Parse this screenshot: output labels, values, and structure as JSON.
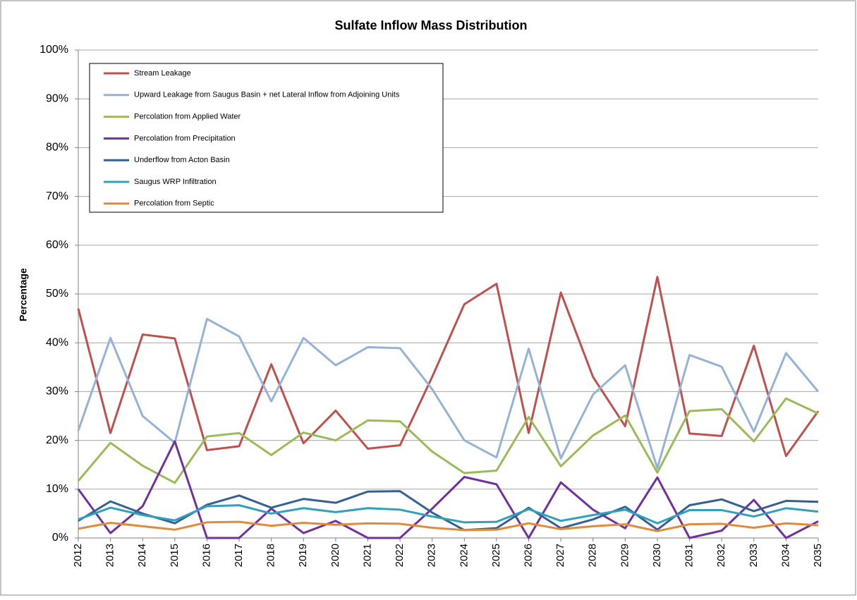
{
  "chart_data": {
    "type": "line",
    "title": "Sulfate Inflow Mass Distribution",
    "ylabel": "Percentage",
    "categories": [
      "2012",
      "2013",
      "2014",
      "2015",
      "2016",
      "2017",
      "2018",
      "2019",
      "2020",
      "2021",
      "2022",
      "2023",
      "2024",
      "2025",
      "2026",
      "2027",
      "2028",
      "2029",
      "2030",
      "2031",
      "2032",
      "2033",
      "2034",
      "2035"
    ],
    "ylim": [
      0,
      100
    ],
    "yticks": [
      {
        "value": 0,
        "label": "0%"
      },
      {
        "value": 10,
        "label": "10%"
      },
      {
        "value": 20,
        "label": "20%"
      },
      {
        "value": 30,
        "label": "30%"
      },
      {
        "value": 40,
        "label": "40%"
      },
      {
        "value": 50,
        "label": "50%"
      },
      {
        "value": 60,
        "label": "60%"
      },
      {
        "value": 70,
        "label": "70%"
      },
      {
        "value": 80,
        "label": "80%"
      },
      {
        "value": 90,
        "label": "90%"
      },
      {
        "value": 100,
        "label": "100%"
      }
    ],
    "grid": true,
    "legend": "upper left",
    "series": [
      {
        "name": "Stream Leakage",
        "color": "#c0504d",
        "values": [
          47,
          21.5,
          41.7,
          40.9,
          18,
          18.8,
          35.6,
          19.4,
          26.1,
          18.3,
          19,
          33,
          47.9,
          52.1,
          21.5,
          50.3,
          33,
          22.9,
          53.5,
          21.4,
          20.9,
          39.4,
          16.8,
          26
        ]
      },
      {
        "name": "Upward Leakage from Saugus Basin + net Lateral Inflow from Adjoining Units",
        "color": "#95b3d7",
        "values": [
          22,
          41,
          25,
          19.5,
          44.9,
          41.3,
          28,
          41,
          35.4,
          39.1,
          38.9,
          30.5,
          20,
          16.5,
          38.8,
          16.3,
          29.4,
          35.4,
          14.3,
          37.5,
          35.1,
          21.8,
          37.9,
          30
        ]
      },
      {
        "name": "Percolation from Applied Water",
        "color": "#9bbb59",
        "values": [
          11.7,
          19.5,
          14.8,
          11.3,
          20.8,
          21.5,
          17,
          21.6,
          20,
          24.1,
          23.9,
          17.7,
          13.3,
          13.8,
          24.8,
          14.7,
          21,
          25.1,
          13.4,
          26,
          26.4,
          19.8,
          28.6,
          25.5
        ]
      },
      {
        "name": "Percolation from Precipitation",
        "color": "#7030a0",
        "values": [
          10,
          1,
          6.5,
          19.8,
          0,
          0,
          6,
          1,
          3.5,
          0,
          0,
          6,
          12.5,
          11,
          0,
          11.4,
          5.8,
          2,
          12.4,
          0,
          1.5,
          7.8,
          0,
          3.4
        ]
      },
      {
        "name": "Underflow from Acton Basin",
        "color": "#376092",
        "values": [
          3.5,
          7.5,
          5,
          3,
          6.8,
          8.7,
          6.2,
          8,
          7.2,
          9.5,
          9.6,
          5.2,
          1.6,
          2,
          6.2,
          2,
          3.8,
          6.4,
          1.7,
          6.7,
          7.9,
          5.5,
          7.6,
          7.4
        ]
      },
      {
        "name": "Saugus WRP Infiltration",
        "color": "#31a0b8",
        "values": [
          3.8,
          6.2,
          4.7,
          3.6,
          6.5,
          6.7,
          5,
          6.1,
          5.3,
          6.1,
          5.8,
          4.4,
          3.2,
          3.3,
          5.9,
          3.5,
          4.7,
          5.8,
          3,
          5.7,
          5.7,
          4.4,
          6.1,
          5.4
        ]
      },
      {
        "name": "Percolation from Septic",
        "color": "#e28a3c",
        "values": [
          1.9,
          3.1,
          2.4,
          1.7,
          3.2,
          3.3,
          2.5,
          3.1,
          2.7,
          3.0,
          2.9,
          2.1,
          1.6,
          1.7,
          3.0,
          1.8,
          2.4,
          2.8,
          1.4,
          2.8,
          2.9,
          2.1,
          3.0,
          2.6
        ]
      }
    ]
  }
}
